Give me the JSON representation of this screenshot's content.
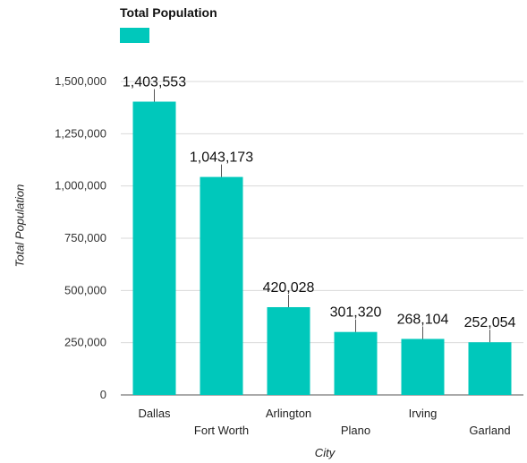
{
  "chart_data": {
    "type": "bar",
    "title": "",
    "legend": {
      "entries": [
        "Total Population"
      ],
      "position": "top-left"
    },
    "categories": [
      "Dallas",
      "Fort Worth",
      "Arlington",
      "Plano",
      "Irving",
      "Garland"
    ],
    "series": [
      {
        "name": "Total Population",
        "values": [
          1403553,
          1043173,
          420028,
          301320,
          268104,
          252054
        ],
        "labels": [
          "1,403,553",
          "1,043,173",
          "420,028",
          "301,320",
          "268,104",
          "252,054"
        ],
        "color": "#00c8bb"
      }
    ],
    "xlabel": "City",
    "ylabel": "Total Population",
    "ylim": [
      0,
      1500000
    ],
    "yticks": [
      0,
      250000,
      500000,
      750000,
      1000000,
      1250000,
      1500000
    ],
    "ytick_labels": [
      "0",
      "250,000",
      "500,000",
      "750,000",
      "1,000,000",
      "1,250,000",
      "1,500,000"
    ],
    "grid": true,
    "colors": {
      "bar": "#00c8bb",
      "grid": "#d9d9d9",
      "label_leader": "#555555"
    }
  }
}
